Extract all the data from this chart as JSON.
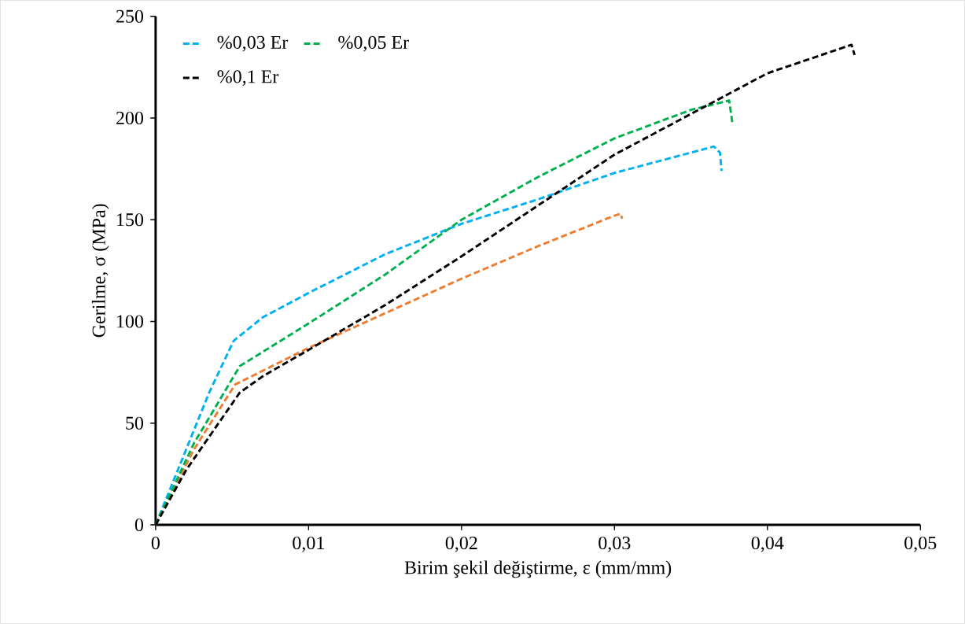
{
  "chart_data": {
    "type": "line",
    "xlabel": "Birim şekil değiştirme, ε (mm/mm)",
    "ylabel": "Gerilme, σ (MPa)",
    "xlim": [
      0,
      0.05
    ],
    "ylim": [
      0,
      250
    ],
    "xticks": [
      0,
      {
        "value": 0.01,
        "label": "0,01"
      },
      {
        "value": 0.02,
        "label": "0,02"
      },
      {
        "value": 0.03,
        "label": "0,03"
      },
      {
        "value": 0.04,
        "label": "0,04"
      },
      {
        "value": 0.05,
        "label": "0,05"
      }
    ],
    "yticks": [
      0,
      50,
      100,
      150,
      200,
      250
    ],
    "legend": "top left",
    "line_style": "dashed",
    "marker": "none",
    "grid": false,
    "series": [
      {
        "color": "#ed7d31",
        "x": [
          0,
          0.0025,
          0.0052,
          0.006,
          0.01,
          0.015,
          0.02,
          0.025,
          0.03,
          0.0304,
          0.0305
        ],
        "values": [
          0,
          37,
          69,
          72,
          87,
          104,
          121,
          137,
          152,
          153,
          150.5
        ]
      },
      {
        "name": "%0,03 Er",
        "color": "#00b0f0",
        "x": [
          0,
          0.0035,
          0.0051,
          0.007,
          0.01,
          0.015,
          0.02,
          0.025,
          0.03,
          0.035,
          0.0365,
          0.0369,
          0.037
        ],
        "values": [
          0,
          65,
          90.5,
          102,
          114,
          133,
          148,
          160,
          173,
          183,
          186,
          183,
          174
        ]
      },
      {
        "name": "%0,05 Er",
        "color": "#00b050",
        "x": [
          0,
          0.0025,
          0.0055,
          0.01,
          0.015,
          0.02,
          0.025,
          0.03,
          0.035,
          0.0375,
          0.0377
        ],
        "values": [
          0,
          40,
          78,
          99,
          123,
          150,
          171,
          190,
          204,
          208.6,
          198
        ]
      },
      {
        "name": "%0,1 Er",
        "color": "#000000",
        "x": [
          0,
          0.002,
          0.0055,
          0.007,
          0.01,
          0.015,
          0.02,
          0.025,
          0.03,
          0.035,
          0.04,
          0.0455,
          0.0457
        ],
        "values": [
          0,
          27,
          65,
          73,
          86,
          108,
          132,
          157,
          182,
          202,
          222,
          236,
          231
        ]
      }
    ]
  }
}
